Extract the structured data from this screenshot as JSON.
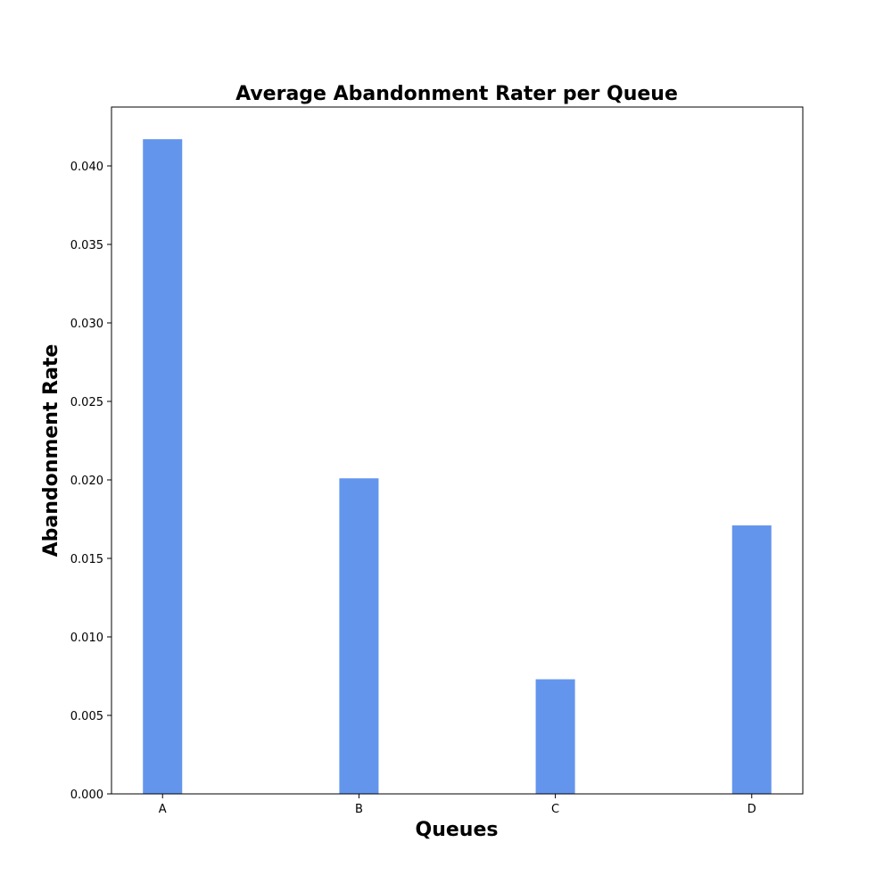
{
  "chart_data": {
    "type": "bar",
    "title": "Average Abandonment Rater per Queue",
    "xlabel": "Queues",
    "ylabel": "Abandonment Rate",
    "categories": [
      "A",
      "B",
      "C",
      "D"
    ],
    "values": [
      0.0417,
      0.0201,
      0.0073,
      0.0171
    ],
    "ylim": [
      0,
      0.04375
    ],
    "yticks": [
      "0.000",
      "0.005",
      "0.010",
      "0.015",
      "0.020",
      "0.025",
      "0.030",
      "0.035",
      "0.040"
    ],
    "bar_color": "#6495ED",
    "grid": false,
    "legend": "none"
  }
}
